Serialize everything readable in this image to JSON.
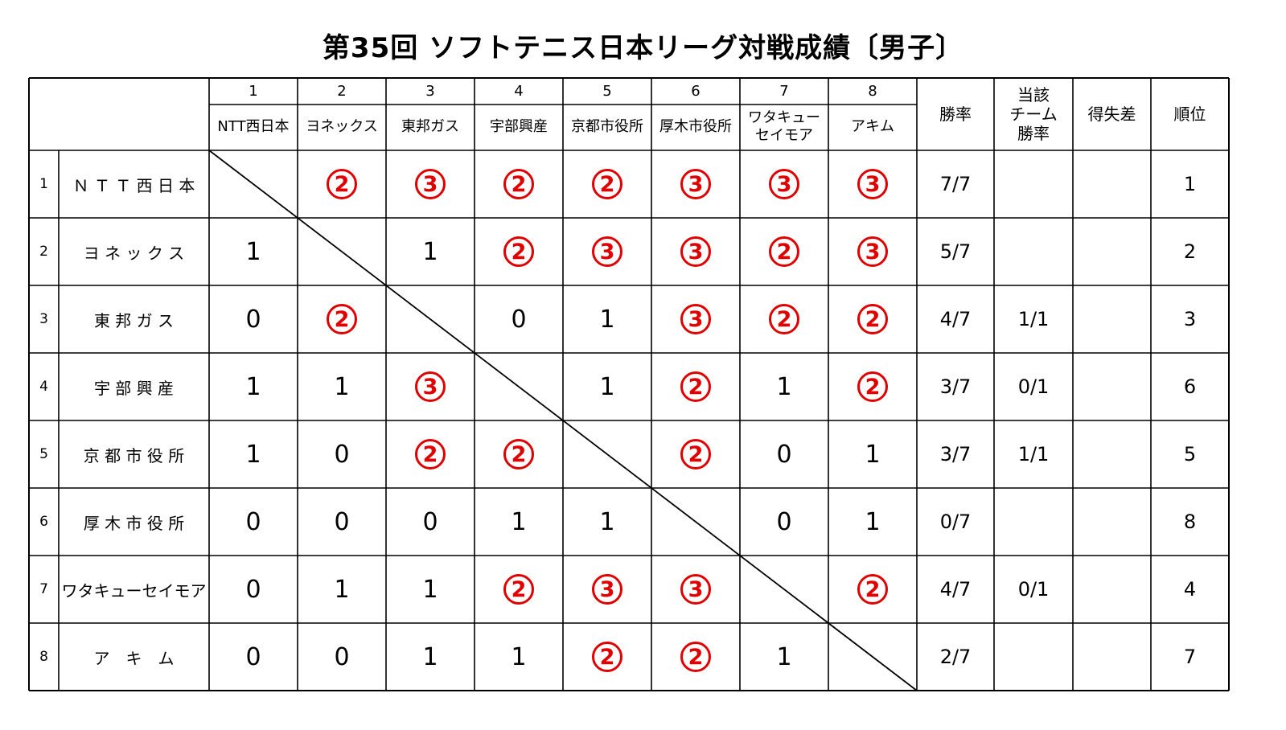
{
  "title": "第35回 ソフトテニス日本リーグ対戦成績〔男子〕",
  "column_numbers": [
    "1",
    "2",
    "3",
    "4",
    "5",
    "6",
    "7",
    "8"
  ],
  "column_teams": [
    "NTT西日本",
    "ヨネックス",
    "東邦ガス",
    "宇部興産",
    "京都市役所",
    "厚木市役所",
    "ワタキュー\nセイモア",
    "アキム"
  ],
  "stat_headers": {
    "win_rate": "勝率",
    "head_to_head": "当該\nチーム\n勝率",
    "point_diff": "得失差",
    "rank": "順位"
  },
  "rows": [
    {
      "num": "1",
      "team": "Ｎ Ｔ Ｔ 西 日 本",
      "results": [
        null,
        "2",
        "3",
        "2",
        "2",
        "3",
        "3",
        "3"
      ],
      "win_rate": "7/7",
      "h2h": "",
      "diff": "",
      "rank": "1"
    },
    {
      "num": "2",
      "team": "ヨ ネ ッ ク ス",
      "results": [
        "1",
        null,
        "1",
        "2",
        "3",
        "3",
        "2",
        "3"
      ],
      "win_rate": "5/7",
      "h2h": "",
      "diff": "",
      "rank": "2"
    },
    {
      "num": "3",
      "team": "東 邦 ガ ス",
      "results": [
        "0",
        "2",
        null,
        "0",
        "1",
        "3",
        "2",
        "2"
      ],
      "win_rate": "4/7",
      "h2h": "1/1",
      "diff": "",
      "rank": "3"
    },
    {
      "num": "4",
      "team": "宇 部 興 産",
      "results": [
        "1",
        "1",
        "3",
        null,
        "1",
        "2",
        "1",
        "2"
      ],
      "win_rate": "3/7",
      "h2h": "0/1",
      "diff": "",
      "rank": "6"
    },
    {
      "num": "5",
      "team": "京 都 市 役 所",
      "results": [
        "1",
        "0",
        "2",
        "2",
        null,
        "2",
        "0",
        "1"
      ],
      "win_rate": "3/7",
      "h2h": "1/1",
      "diff": "",
      "rank": "5"
    },
    {
      "num": "6",
      "team": "厚 木 市 役 所",
      "results": [
        "0",
        "0",
        "0",
        "1",
        "1",
        null,
        "0",
        "1"
      ],
      "win_rate": "0/7",
      "h2h": "",
      "diff": "",
      "rank": "8"
    },
    {
      "num": "7",
      "team": "ワタキューセイモア",
      "results": [
        "0",
        "1",
        "1",
        "2",
        "3",
        "3",
        null,
        "2"
      ],
      "win_rate": "4/7",
      "h2h": "0/1",
      "diff": "",
      "rank": "4"
    },
    {
      "num": "8",
      "team": "ア　キ　ム",
      "results": [
        "0",
        "0",
        "1",
        "1",
        "2",
        "2",
        "1",
        null
      ],
      "win_rate": "2/7",
      "h2h": "",
      "diff": "",
      "rank": "7"
    }
  ],
  "win_marker": "circled number (team won the match)",
  "colors": {
    "win_circle": "#e00000",
    "grid_line": "#000000",
    "background": "#ffffff"
  }
}
